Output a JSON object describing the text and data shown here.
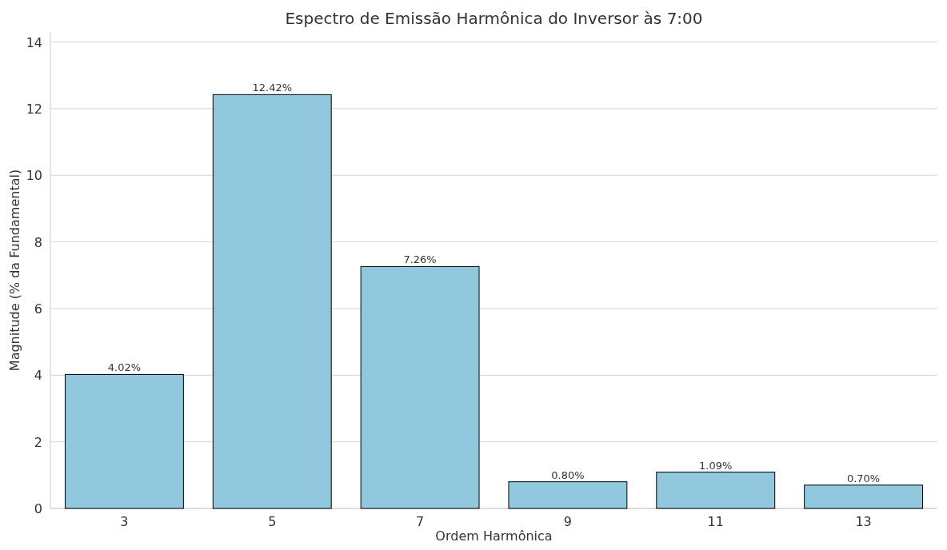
{
  "chart_data": {
    "type": "bar",
    "title": "Espectro de Emissão Harmônica do Inversor às 7:00",
    "xlabel": "Ordem Harmônica",
    "ylabel": "Magnitude (% da Fundamental)",
    "categories": [
      "3",
      "5",
      "7",
      "9",
      "11",
      "13"
    ],
    "values": [
      4.02,
      12.42,
      7.26,
      0.8,
      1.09,
      0.7
    ],
    "value_labels": [
      "4.02%",
      "12.42%",
      "7.26%",
      "0.80%",
      "1.09%",
      "0.70%"
    ],
    "color": "#92c8de",
    "ylim": [
      0,
      14.3
    ],
    "yticks": [
      0,
      2,
      4,
      6,
      8,
      10,
      12,
      14
    ],
    "grid": "y"
  }
}
